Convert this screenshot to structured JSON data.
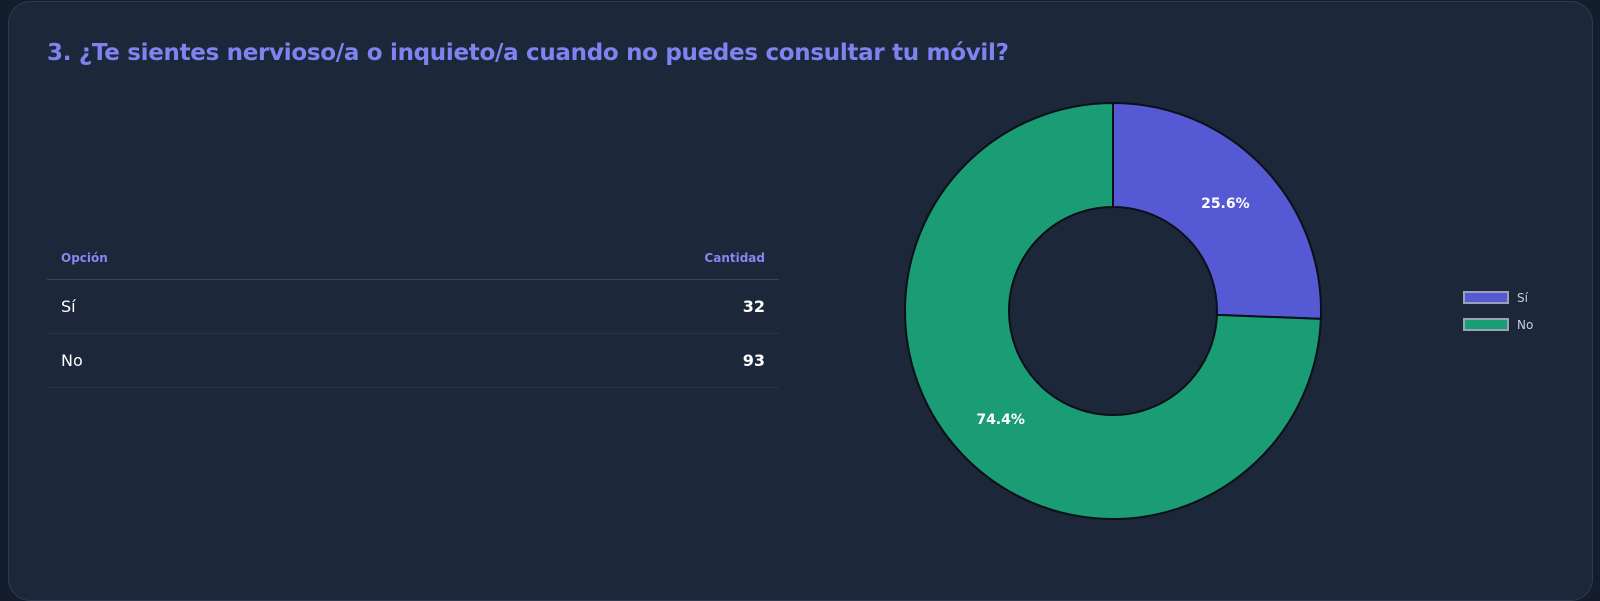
{
  "title": "3. ¿Te sientes nervioso/a o inquieto/a cuando no puedes consultar tu móvil?",
  "table": {
    "headers": {
      "option": "Opción",
      "count": "Cantidad"
    },
    "rows": [
      {
        "option": "Sí",
        "count": "32"
      },
      {
        "option": "No",
        "count": "93"
      }
    ]
  },
  "chart_data": {
    "type": "pie",
    "variant": "donut",
    "categories": [
      "Sí",
      "No"
    ],
    "values": [
      32,
      93
    ],
    "data_labels": [
      "25.6%",
      "74.4%"
    ],
    "colors": [
      "#5659d4",
      "#1a9c74"
    ],
    "legend_position": "right"
  }
}
